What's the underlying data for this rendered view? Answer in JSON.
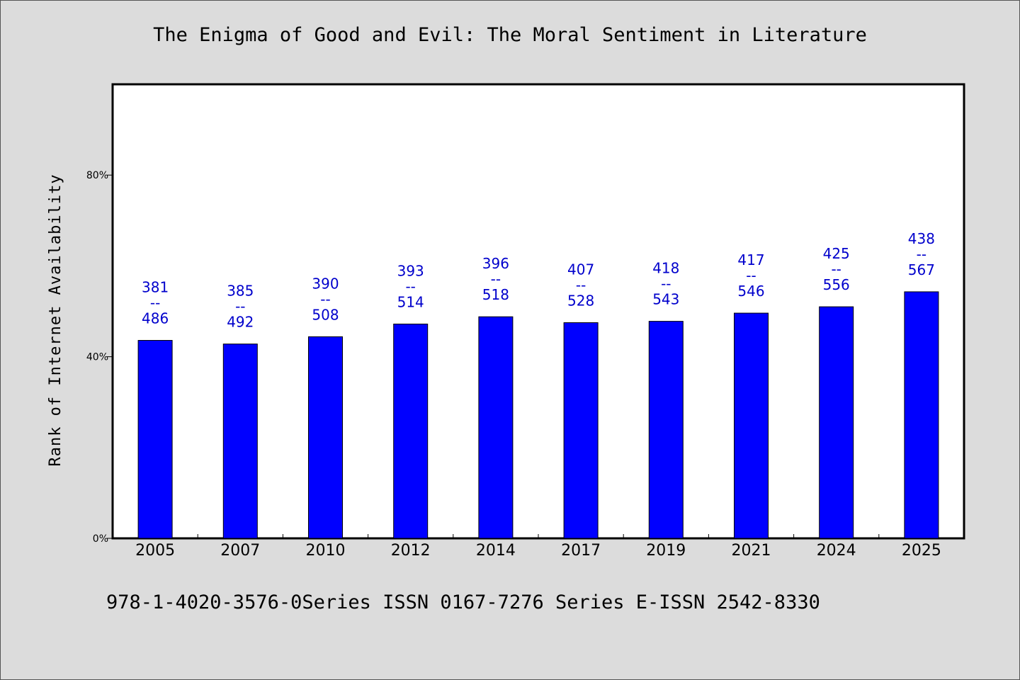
{
  "title": "The Enigma of Good and Evil: The Moral Sentiment in Literature",
  "footer": "978-1-4020-3576-0Series ISSN 0167-7276 Series E-ISSN 2542-8330",
  "chart_data": {
    "type": "bar",
    "title": "The Enigma of Good and Evil: The Moral Sentiment in Literature",
    "xlabel": "",
    "ylabel": "Rank of Internet Availability",
    "categories": [
      "2005",
      "2007",
      "2010",
      "2012",
      "2014",
      "2017",
      "2019",
      "2021",
      "2024",
      "2025"
    ],
    "values": [
      43.6,
      42.8,
      44.4,
      47.2,
      48.8,
      47.5,
      47.8,
      49.6,
      51.0,
      54.3
    ],
    "data_labels": [
      [
        "381",
        "--",
        "486"
      ],
      [
        "385",
        "--",
        "492"
      ],
      [
        "390",
        "--",
        "508"
      ],
      [
        "393",
        "--",
        "514"
      ],
      [
        "396",
        "--",
        "518"
      ],
      [
        "407",
        "--",
        "528"
      ],
      [
        "418",
        "--",
        "543"
      ],
      [
        "417",
        "--",
        "546"
      ],
      [
        "425",
        "--",
        "556"
      ],
      [
        "438",
        "--",
        "567"
      ]
    ],
    "ylim": [
      0,
      100
    ],
    "yticks": [
      0,
      40,
      80
    ],
    "ytick_labels": [
      "0%",
      "40%",
      "80%"
    ],
    "grid": false,
    "legend": "none",
    "bar_color": "#0000ff",
    "label_color": "#0000cc"
  }
}
